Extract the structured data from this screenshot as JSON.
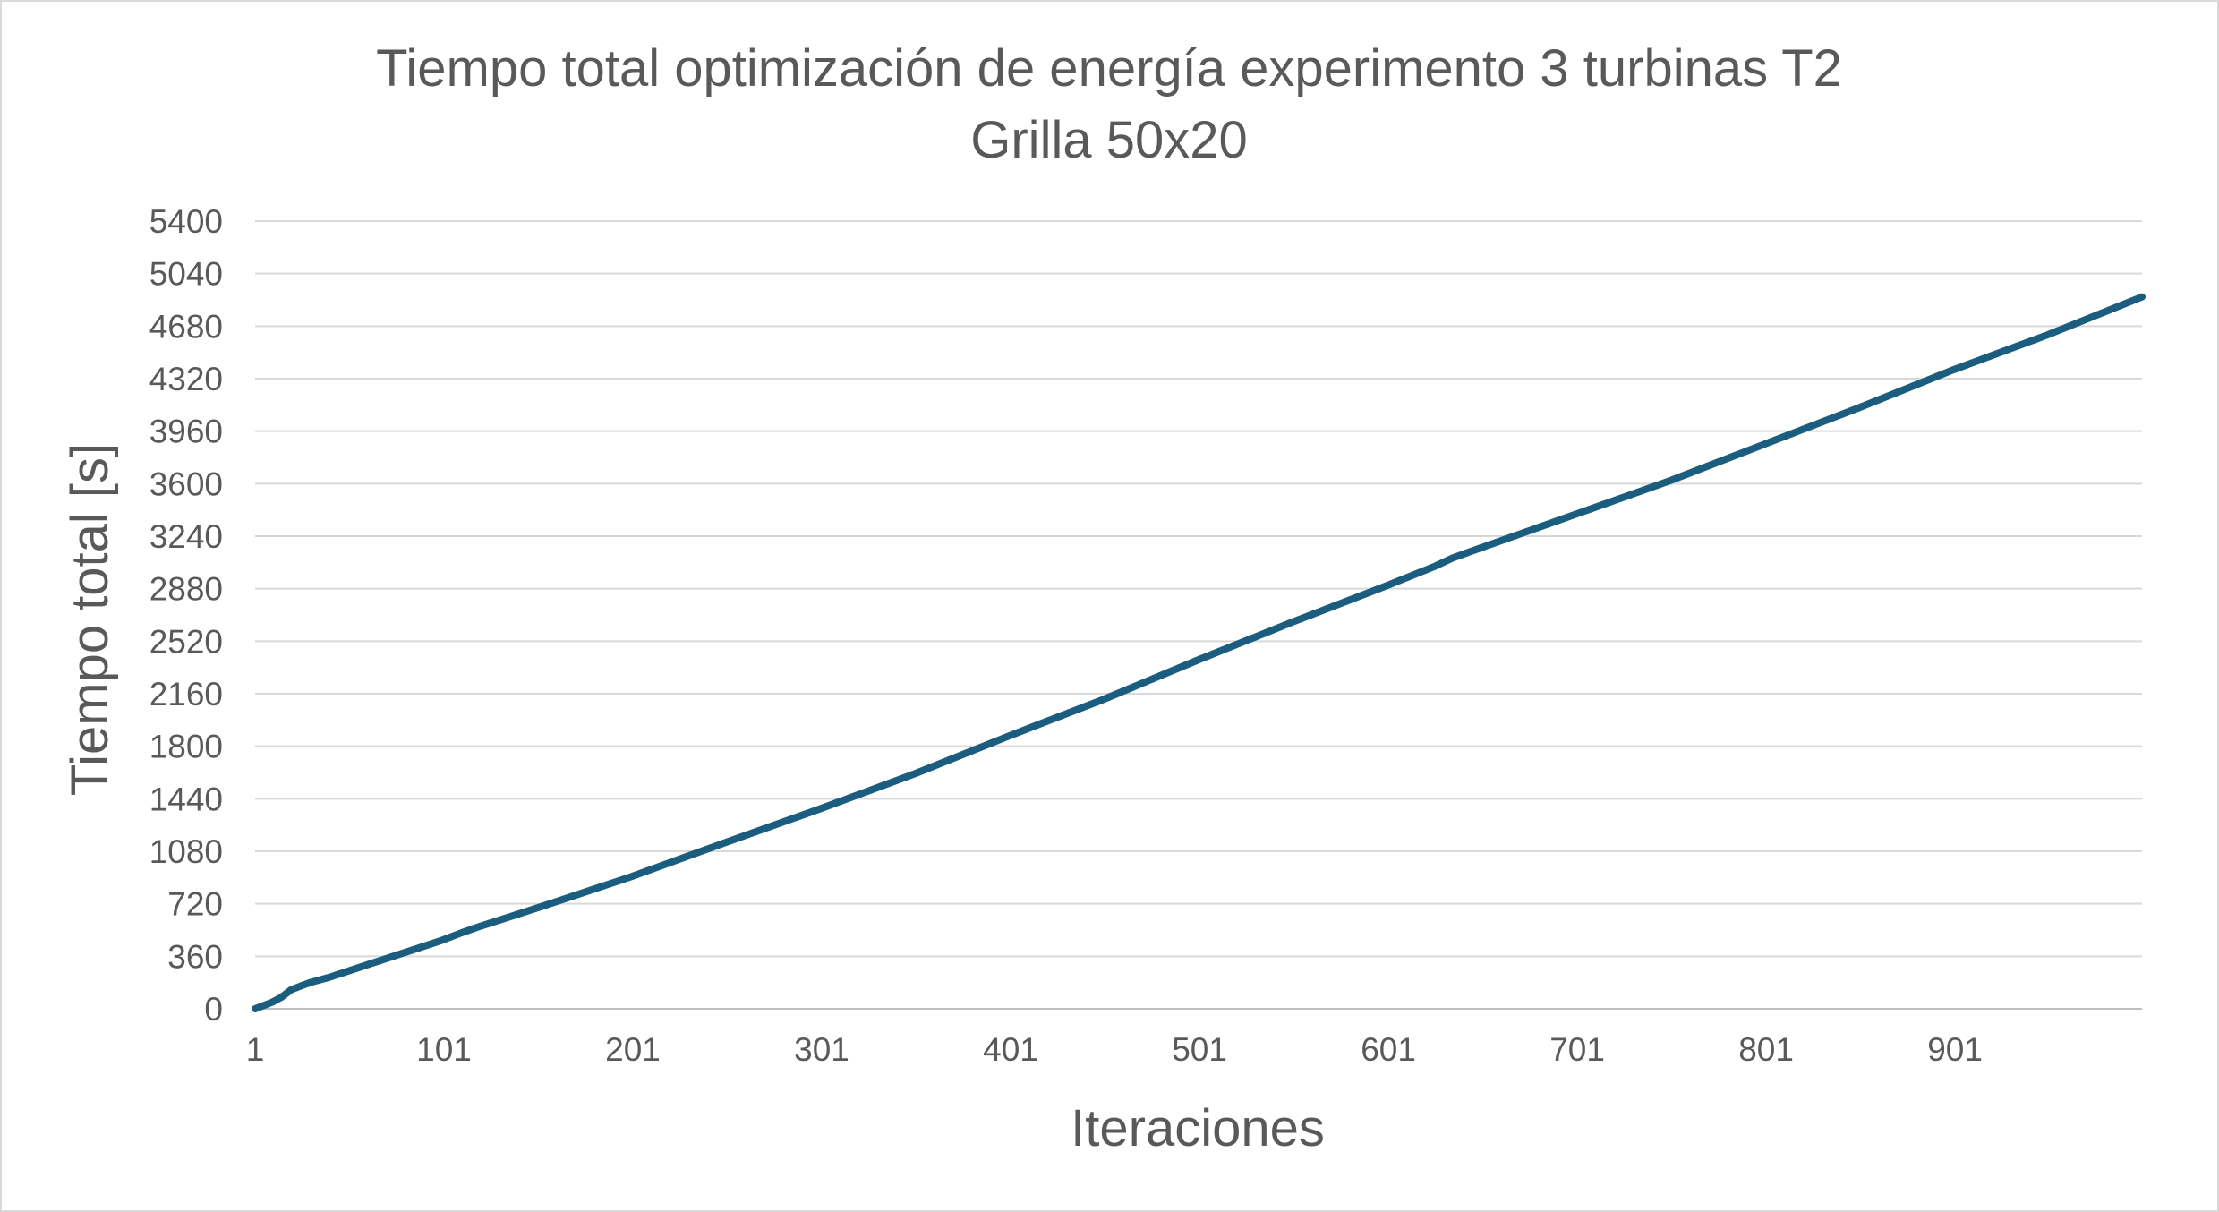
{
  "chart_data": {
    "type": "line",
    "title": "Tiempo total optimización de energía experimento 3 turbinas T2",
    "subtitle": "Grilla 50x20",
    "xlabel": "Iteraciones",
    "ylabel": "Tiempo total [s]",
    "ylim": [
      0,
      5400
    ],
    "y_ticks": [
      "0",
      "360",
      "720",
      "1080",
      "1440",
      "1800",
      "2160",
      "2520",
      "2880",
      "3240",
      "3600",
      "3960",
      "4320",
      "4680",
      "5040",
      "5400"
    ],
    "x_range": [
      1,
      1000
    ],
    "x_ticks": [
      "1",
      "101",
      "201",
      "301",
      "401",
      "501",
      "601",
      "701",
      "801",
      "901"
    ],
    "grid": true,
    "legend": "none",
    "series": [
      {
        "color": "#1b5d7e",
        "x": [
          1,
          10,
          15,
          20,
          25,
          30,
          40,
          60,
          80,
          100,
          110,
          120,
          150,
          200,
          250,
          300,
          350,
          400,
          450,
          500,
          550,
          600,
          625,
          635,
          650,
          700,
          750,
          800,
          850,
          900,
          950,
          1000
        ],
        "y": [
          0,
          45,
          80,
          130,
          155,
          180,
          215,
          300,
          385,
          470,
          520,
          565,
          690,
          905,
          1140,
          1370,
          1610,
          1870,
          2120,
          2390,
          2650,
          2900,
          3030,
          3090,
          3160,
          3390,
          3620,
          3870,
          4120,
          4380,
          4620,
          4880
        ]
      }
    ]
  }
}
